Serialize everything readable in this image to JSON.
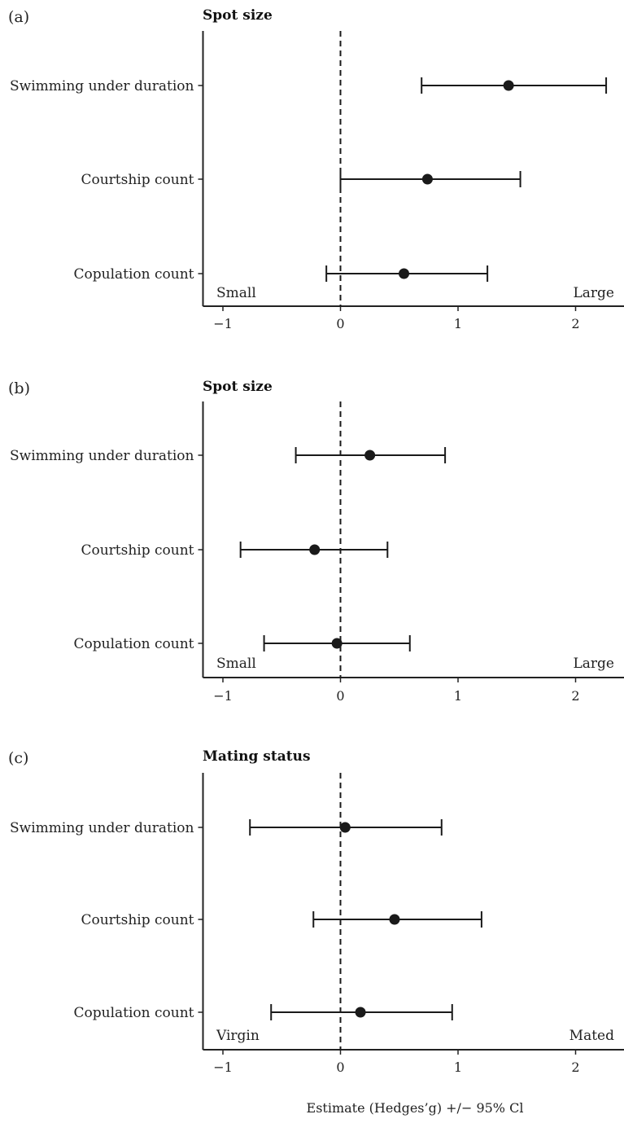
{
  "chart_data": [
    {
      "type": "forest",
      "panel_label": "(a)",
      "title": "Spot size",
      "categories": [
        "Swimming under duration",
        "Courtship count",
        "Copulation count"
      ],
      "estimates": [
        1.43,
        0.74,
        0.54
      ],
      "ci_low": [
        0.69,
        0.0,
        -0.12
      ],
      "ci_high": [
        2.26,
        1.53,
        1.25
      ],
      "xlim": [
        -1.15,
        2.45
      ],
      "xticks": [
        -1,
        0,
        1,
        2
      ],
      "xtick_labels": [
        "−1",
        "0",
        "1",
        "2"
      ],
      "reference_line": 0,
      "left_label": "Small",
      "right_label": "Large"
    },
    {
      "type": "forest",
      "panel_label": "(b)",
      "title": "Spot size",
      "categories": [
        "Swimming under duration",
        "Courtship count",
        "Copulation count"
      ],
      "estimates": [
        0.25,
        -0.22,
        -0.03
      ],
      "ci_low": [
        -0.38,
        -0.85,
        -0.65
      ],
      "ci_high": [
        0.89,
        0.4,
        0.59
      ],
      "xlim": [
        -1.15,
        2.45
      ],
      "xticks": [
        -1,
        0,
        1,
        2
      ],
      "xtick_labels": [
        "−1",
        "0",
        "1",
        "2"
      ],
      "reference_line": 0,
      "left_label": "Small",
      "right_label": "Large"
    },
    {
      "type": "forest",
      "panel_label": "(c)",
      "title": "Mating status",
      "categories": [
        "Swimming under duration",
        "Courtship count",
        "Copulation count"
      ],
      "estimates": [
        0.04,
        0.46,
        0.17
      ],
      "ci_low": [
        -0.77,
        -0.23,
        -0.59
      ],
      "ci_high": [
        0.86,
        1.2,
        0.95
      ],
      "xlim": [
        -1.15,
        2.45
      ],
      "xticks": [
        -1,
        0,
        1,
        2
      ],
      "xtick_labels": [
        "−1",
        "0",
        "1",
        "2"
      ],
      "reference_line": 0,
      "left_label": "Virgin",
      "right_label": "Mated",
      "xlabel": "Estimate (Hedges’g) +/− 95% Cl"
    }
  ],
  "style": {
    "ink": "#1a1a1a",
    "axis": "#222222"
  }
}
